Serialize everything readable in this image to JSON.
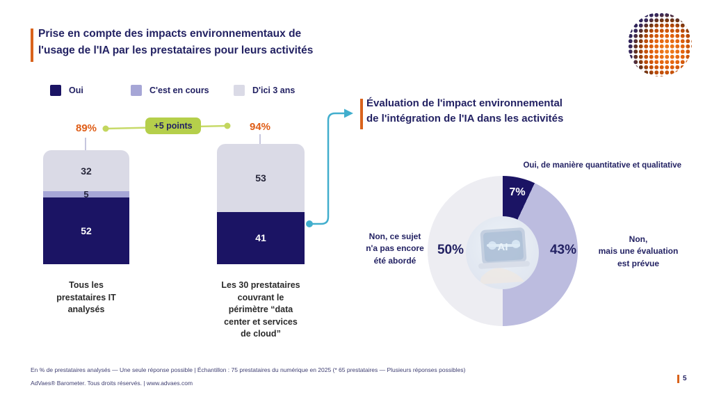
{
  "slide": {
    "title": "Prise en compte des impacts environnementaux de\nl'usage de l'IA par les prestataires pour leurs activités",
    "accent_color": "#d9631c",
    "navy": "#232263",
    "footer_note": "En % de prestataires analysés — Une seule réponse possible | Échantillon : 75 prestataires du numérique en 2025 (* 65 prestataires — Plusieurs réponses possibles)",
    "footer_copyright": "AdVaes® Barometer. Tous droits réservés. | www.advaes.com",
    "page_number": "5",
    "logo": "advaes-dotted-sphere-logo"
  },
  "legend": {
    "items": [
      {
        "label": "Oui",
        "color": "#1b1464"
      },
      {
        "label": "C'est en cours",
        "color": "#a6a6d6"
      },
      {
        "label": "D'ici 3 ans",
        "color": "#dadae6"
      }
    ]
  },
  "chart_data": [
    {
      "type": "bar",
      "subtype": "stacked-column",
      "unit": "% de prestataires analysés",
      "categories": [
        "Tous les\nprestataires IT\nanalysés",
        "Les 30 prestataires\ncouvrant le\npérimètre “data\ncenter et services\nde cloud”"
      ],
      "series": [
        {
          "name": "Oui",
          "color": "#1b1464",
          "values": [
            52,
            41
          ]
        },
        {
          "name": "C'est en cours",
          "color": "#a6a6d6",
          "values": [
            5,
            null
          ]
        },
        {
          "name": "D'ici 3 ans",
          "color": "#dadae6",
          "values": [
            32,
            53
          ]
        }
      ],
      "totals": [
        "89%",
        "94%"
      ],
      "total_color": "#df5d17",
      "annotation": {
        "label": "+5 points",
        "color": "#b5cf4b"
      },
      "ylim": [
        0,
        100
      ],
      "grid": false,
      "legend_position": "top"
    },
    {
      "type": "pie",
      "title": "Évaluation de l'impact environnemental\nde l'intégration de l'IA dans les activités",
      "slices": [
        {
          "label": "Oui, de manière quantitative et qualitative",
          "value": 7,
          "pct": "7%",
          "color": "#1b1464"
        },
        {
          "label": "Non,\nmais une évaluation\nest prévue",
          "value": 43,
          "pct": "43%",
          "color": "#bcbcdf"
        },
        {
          "label": "Non, ce sujet\nn'a pas encore\nété abordé",
          "value": 50,
          "pct": "50%",
          "color": "#ededf2"
        }
      ],
      "center_image": "laptop-ai-hologram",
      "start_angle_deg": 0,
      "direction": "clockwise"
    }
  ]
}
